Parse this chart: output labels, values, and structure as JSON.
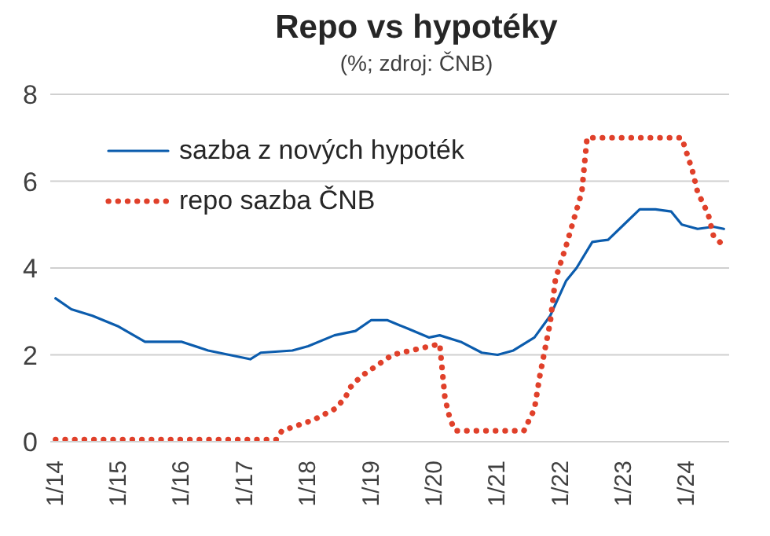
{
  "chart_data": {
    "type": "line",
    "title": "Repo vs hypotéky",
    "subtitle": "(%; zdroj: ČNB)",
    "series": [
      {
        "name": "sazba z nových hypoték",
        "color": "#0b5cad",
        "line_style": "solid",
        "x": [
          "2014-01",
          "2014-04",
          "2014-08",
          "2015-01",
          "2015-06",
          "2016-01",
          "2016-06",
          "2016-12",
          "2017-02",
          "2017-04",
          "2017-10",
          "2018-01",
          "2018-06",
          "2018-10",
          "2019-01",
          "2019-04",
          "2019-08",
          "2019-12",
          "2020-02",
          "2020-06",
          "2020-10",
          "2021-01",
          "2021-04",
          "2021-08",
          "2021-11",
          "2022-02",
          "2022-04",
          "2022-07",
          "2022-10",
          "2023-01",
          "2023-04",
          "2023-07",
          "2023-10",
          "2023-12",
          "2024-03",
          "2024-06",
          "2024-08"
        ],
        "values": [
          3.3,
          3.05,
          2.9,
          2.65,
          2.3,
          2.3,
          2.1,
          1.95,
          1.9,
          2.05,
          2.1,
          2.2,
          2.45,
          2.55,
          2.8,
          2.8,
          2.6,
          2.4,
          2.45,
          2.3,
          2.05,
          2.0,
          2.1,
          2.4,
          2.9,
          3.7,
          4.0,
          4.6,
          4.65,
          5.0,
          5.35,
          5.35,
          5.3,
          5.0,
          4.9,
          4.95,
          4.9
        ]
      },
      {
        "name": "repo sazba ČNB",
        "color": "#e0402a",
        "line_style": "dotted",
        "x": [
          "2014-01",
          "2017-07",
          "2017-08",
          "2018-02",
          "2018-06",
          "2018-08",
          "2018-09",
          "2018-11",
          "2019-02",
          "2019-05",
          "2020-02",
          "2020-03",
          "2020-04",
          "2020-05",
          "2021-06",
          "2021-08",
          "2021-09",
          "2021-11",
          "2021-12",
          "2022-02",
          "2022-05",
          "2022-06",
          "2023-12",
          "2024-02",
          "2024-03",
          "2024-05",
          "2024-06",
          "2024-08"
        ],
        "values": [
          0.05,
          0.05,
          0.25,
          0.5,
          0.75,
          1.0,
          1.25,
          1.5,
          1.75,
          2.0,
          2.25,
          1.0,
          0.5,
          0.25,
          0.25,
          0.75,
          1.5,
          2.75,
          3.75,
          4.5,
          5.75,
          7.0,
          7.0,
          6.25,
          5.75,
          5.25,
          4.75,
          4.5
        ]
      }
    ],
    "xlim": [
      "2013-12",
      "2024-09"
    ],
    "xticks": [
      {
        "value": "2014-01",
        "label": "1/14"
      },
      {
        "value": "2015-01",
        "label": "1/15"
      },
      {
        "value": "2016-01",
        "label": "1/16"
      },
      {
        "value": "2017-01",
        "label": "1/17"
      },
      {
        "value": "2018-01",
        "label": "1/18"
      },
      {
        "value": "2019-01",
        "label": "1/19"
      },
      {
        "value": "2020-01",
        "label": "1/20"
      },
      {
        "value": "2021-01",
        "label": "1/21"
      },
      {
        "value": "2022-01",
        "label": "1/22"
      },
      {
        "value": "2023-01",
        "label": "1/23"
      },
      {
        "value": "2024-01",
        "label": "1/24"
      }
    ],
    "ylim": [
      0,
      8
    ],
    "yticks": [
      0,
      2,
      4,
      6,
      8
    ],
    "grid": "y",
    "legend": "top left",
    "marker": "none"
  }
}
